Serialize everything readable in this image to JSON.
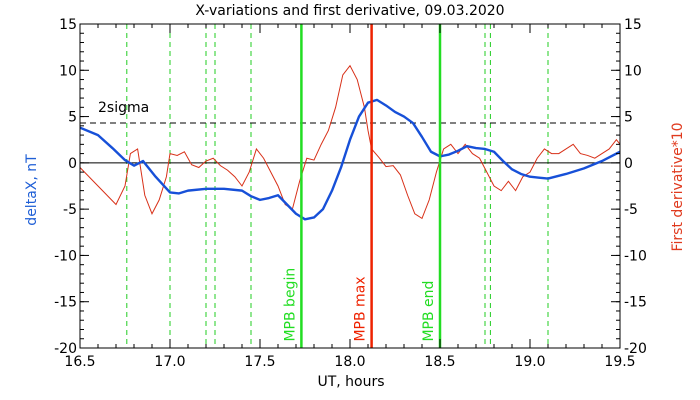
{
  "chart_data": {
    "type": "line",
    "title": "X-variations and first derivative, 09.03.2020",
    "xlabel": "UT, hours",
    "ylabel_left": "deltaX, nT",
    "ylabel_right": "First derivative*10",
    "xlim": [
      16.5,
      19.5
    ],
    "ylim": [
      -20,
      15
    ],
    "x_ticks": [
      16.5,
      17.0,
      17.5,
      18.0,
      18.5,
      19.0,
      19.5
    ],
    "x_tick_labels": [
      "16.5",
      "17.0",
      "17.5",
      "18.0",
      "18.5",
      "19.0",
      "19.5"
    ],
    "y_ticks": [
      -20,
      -15,
      -10,
      -5,
      0,
      5,
      10,
      15
    ],
    "y_tick_labels": [
      "-20",
      "-15",
      "-10",
      "-5",
      "0",
      "5",
      "10",
      "15"
    ],
    "sigma_level": 4.3,
    "sigma_label": "2sigma",
    "colors": {
      "deltaX": "#1750d8",
      "derivative": "#d83018",
      "mpb_begin_end": "#22dd22",
      "mpb_max": "#ee2200",
      "dashed_green": "#22cc22",
      "left_label": "#1f5fd6",
      "right_label": "#e03a1e"
    },
    "series": [
      {
        "name": "deltaX",
        "x": [
          16.5,
          16.6,
          16.68,
          16.75,
          16.8,
          16.85,
          16.92,
          17.0,
          17.05,
          17.1,
          17.2,
          17.3,
          17.4,
          17.45,
          17.5,
          17.55,
          17.6,
          17.65,
          17.7,
          17.75,
          17.8,
          17.85,
          17.9,
          17.95,
          18.0,
          18.05,
          18.1,
          18.15,
          18.2,
          18.25,
          18.3,
          18.35,
          18.4,
          18.45,
          18.5,
          18.55,
          18.6,
          18.65,
          18.7,
          18.75,
          18.8,
          18.85,
          18.9,
          18.95,
          19.0,
          19.05,
          19.1,
          19.2,
          19.3,
          19.4,
          19.5
        ],
        "values": [
          3.8,
          3.0,
          1.6,
          0.3,
          -0.3,
          0.2,
          -1.5,
          -3.2,
          -3.3,
          -3.0,
          -2.8,
          -2.8,
          -3.0,
          -3.6,
          -4.0,
          -3.8,
          -3.5,
          -4.5,
          -5.5,
          -6.1,
          -5.9,
          -5.0,
          -3.0,
          -0.5,
          2.5,
          5.0,
          6.5,
          6.8,
          6.2,
          5.5,
          5.0,
          4.3,
          2.8,
          1.2,
          0.7,
          0.9,
          1.3,
          1.8,
          1.6,
          1.5,
          1.2,
          0.2,
          -0.7,
          -1.2,
          -1.5,
          -1.6,
          -1.7,
          -1.2,
          -0.6,
          0.2,
          1.2
        ]
      },
      {
        "name": "First derivative*10",
        "x": [
          16.5,
          16.55,
          16.6,
          16.65,
          16.7,
          16.75,
          16.78,
          16.82,
          16.86,
          16.9,
          16.94,
          16.98,
          17.0,
          17.04,
          17.08,
          17.12,
          17.16,
          17.2,
          17.24,
          17.28,
          17.32,
          17.36,
          17.4,
          17.44,
          17.48,
          17.52,
          17.56,
          17.6,
          17.64,
          17.68,
          17.72,
          17.76,
          17.8,
          17.84,
          17.88,
          17.92,
          17.96,
          18.0,
          18.04,
          18.08,
          18.1,
          18.12,
          18.16,
          18.2,
          18.24,
          18.28,
          18.32,
          18.36,
          18.4,
          18.44,
          18.48,
          18.52,
          18.56,
          18.6,
          18.64,
          18.68,
          18.72,
          18.76,
          18.8,
          18.84,
          18.88,
          18.92,
          18.96,
          19.0,
          19.04,
          19.08,
          19.12,
          19.16,
          19.2,
          19.24,
          19.28,
          19.32,
          19.36,
          19.4,
          19.44,
          19.48,
          19.5
        ],
        "values": [
          -0.5,
          -1.5,
          -2.5,
          -3.5,
          -4.5,
          -2.5,
          1.0,
          1.5,
          -3.5,
          -5.5,
          -4.0,
          -1.5,
          1.0,
          0.8,
          1.2,
          -0.2,
          -0.5,
          0.2,
          0.5,
          -0.3,
          -0.8,
          -1.5,
          -2.5,
          -1.0,
          1.5,
          0.5,
          -1.0,
          -2.5,
          -4.5,
          -5.0,
          -2.0,
          0.5,
          0.3,
          2.0,
          3.5,
          6.0,
          9.5,
          10.5,
          9.0,
          6.0,
          3.5,
          1.5,
          0.6,
          -0.4,
          -0.3,
          -1.3,
          -3.5,
          -5.5,
          -6.0,
          -4.0,
          -1.0,
          1.5,
          2.0,
          1.0,
          2.0,
          1.0,
          0.5,
          -1.0,
          -2.5,
          -3.0,
          -2.0,
          -3.0,
          -1.5,
          -1.0,
          0.5,
          1.5,
          1.0,
          1.0,
          1.5,
          2.0,
          1.0,
          0.8,
          0.5,
          1.0,
          1.5,
          2.5,
          2.0
        ]
      }
    ],
    "vertical_lines": [
      {
        "x": 17.73,
        "label": "MPB begin",
        "style": "solid",
        "color": "#22dd22"
      },
      {
        "x": 18.12,
        "label": "MPB max",
        "style": "solid",
        "color": "#ee2200"
      },
      {
        "x": 18.5,
        "label": "MPB end",
        "style": "solid",
        "color": "#22dd22"
      }
    ],
    "dashed_markers": [
      16.76,
      17.0,
      17.2,
      17.25,
      17.45,
      18.75,
      18.78,
      19.1
    ]
  }
}
